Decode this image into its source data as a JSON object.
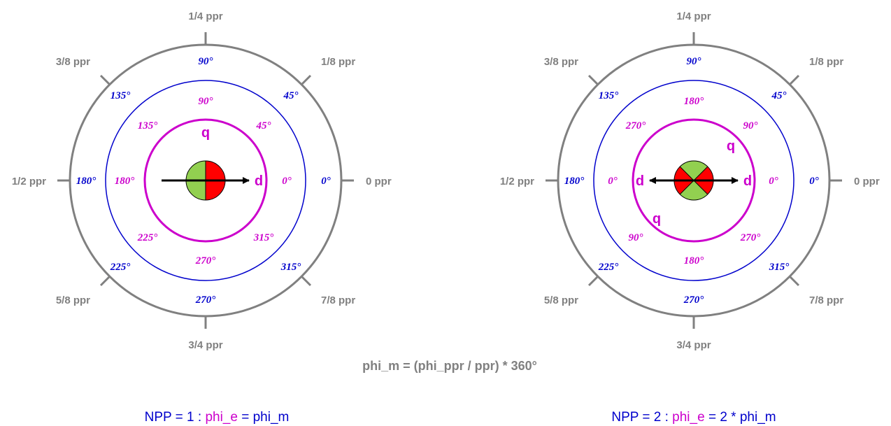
{
  "colors": {
    "outer_ring": "#808080",
    "mechanical": "#0000cc",
    "electrical": "#cc00cc",
    "magnet_north": "#ff0000",
    "magnet_south": "#92d050"
  },
  "diagram_left": {
    "ppr_labels": [
      "0 ppr",
      "1/8 ppr",
      "1/4 ppr",
      "3/8 ppr",
      "1/2 ppr",
      "5/8 ppr",
      "3/4 ppr",
      "7/8 ppr"
    ],
    "mech_labels": [
      "0°",
      "45°",
      "90°",
      "135°",
      "180°",
      "225°",
      "270°",
      "315°"
    ],
    "elec_labels": [
      "0°",
      "45°",
      "90°",
      "135°",
      "180°",
      "225°",
      "270°",
      "315°"
    ],
    "q_label": "q",
    "d_label": "d"
  },
  "diagram_right": {
    "ppr_labels": [
      "0 ppr",
      "1/8 ppr",
      "1/4 ppr",
      "3/8 ppr",
      "1/2 ppr",
      "5/8 ppr",
      "3/4 ppr",
      "7/8 ppr"
    ],
    "mech_labels": [
      "0°",
      "45°",
      "90°",
      "135°",
      "180°",
      "225°",
      "270°",
      "315°"
    ],
    "elec_labels": [
      "0°",
      "90°",
      "180°",
      "270°",
      "0°",
      "90°",
      "180°",
      "270°"
    ],
    "q_label_a": "q",
    "q_label_b": "q",
    "d_label_a": "d",
    "d_label_b": "d"
  },
  "formula": "phi_m = (phi_ppr / ppr) * 360°",
  "npp_left": {
    "prefix": "NPP = 1 : ",
    "phi_e": "phi_e",
    "suffix": " = phi_m"
  },
  "npp_right": {
    "prefix": "NPP = 2 : ",
    "phi_e": "phi_e",
    "suffix": " = 2 * phi_m"
  }
}
